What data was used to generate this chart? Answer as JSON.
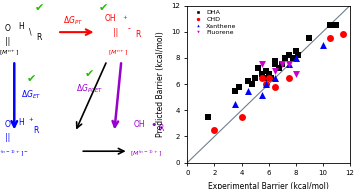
{
  "DHA_x": [
    1.5,
    3.5,
    3.8,
    4.5,
    4.8,
    5.0,
    5.2,
    5.5,
    5.8,
    5.8,
    6.0,
    6.2,
    6.5,
    6.5,
    6.8,
    7.0,
    7.2,
    7.5,
    7.8,
    8.0,
    8.2,
    9.0,
    10.5,
    11.0
  ],
  "DHA_y": [
    3.5,
    5.5,
    5.8,
    6.2,
    6.0,
    6.5,
    7.2,
    6.8,
    6.5,
    7.0,
    6.8,
    6.5,
    7.5,
    7.8,
    7.2,
    7.5,
    8.0,
    8.2,
    8.0,
    8.5,
    8.2,
    9.5,
    10.5,
    10.5
  ],
  "CHD_x": [
    2.0,
    4.0,
    5.5,
    5.8,
    6.0,
    6.5,
    7.5,
    10.5,
    11.5
  ],
  "CHD_y": [
    2.5,
    3.5,
    6.5,
    6.0,
    6.5,
    5.8,
    6.5,
    9.5,
    9.8
  ],
  "Xanthene_x": [
    3.5,
    4.5,
    5.5,
    5.8,
    6.5,
    7.5,
    8.0,
    10.0
  ],
  "Xanthene_y": [
    4.5,
    5.5,
    5.2,
    6.0,
    6.5,
    7.5,
    8.0,
    9.0
  ],
  "Fluorene_x": [
    5.5,
    6.5,
    7.0,
    7.5,
    8.0
  ],
  "Fluorene_y": [
    7.5,
    7.0,
    7.5,
    7.5,
    6.8
  ],
  "line_x": [
    0,
    12
  ],
  "line_y": [
    0,
    12
  ],
  "xlabel": "Experimental Barrier (kcal/mol)",
  "ylabel": "Predicted Barrier (kcal/mol)",
  "xlim": [
    0,
    12
  ],
  "ylim": [
    0,
    12
  ],
  "xticks": [
    0,
    2,
    4,
    6,
    8,
    10,
    12
  ],
  "yticks": [
    0,
    2,
    4,
    6,
    8,
    10,
    12
  ],
  "DHA_color": "#000000",
  "CHD_color": "#ff0000",
  "Xanthene_color": "#0000ff",
  "Fluorene_color": "#cc00cc",
  "line_color": "#708090",
  "marker_size": 5
}
